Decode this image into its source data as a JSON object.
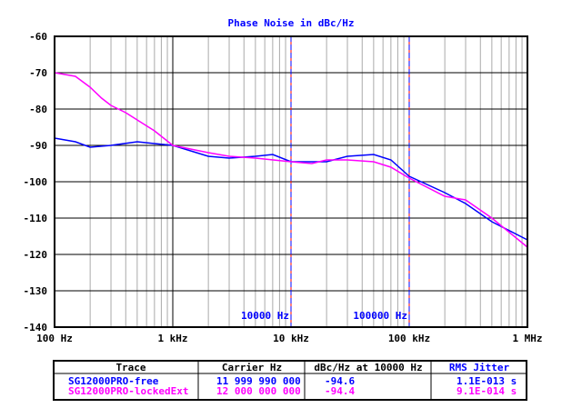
{
  "chart_data": {
    "type": "line",
    "title": "Phase Noise in dBc/Hz",
    "x_scale": "log",
    "xlim": [
      100,
      1000000
    ],
    "ylim": [
      -140,
      -60
    ],
    "grid": true,
    "x_tick_labels": [
      "100 Hz",
      "1 kHz",
      "10 kHz",
      "100 kHz",
      "1 MHz"
    ],
    "y_tick_labels": [
      "-60",
      "-70",
      "-80",
      "-90",
      "-100",
      "-110",
      "-120",
      "-130",
      "-140"
    ],
    "markers": [
      {
        "x": 10000,
        "label": "10000 Hz"
      },
      {
        "x": 100000,
        "label": "100000 Hz"
      }
    ],
    "series": [
      {
        "name": "SG12000PRO-free",
        "color": "#0000ff",
        "x": [
          100,
          150,
          200,
          300,
          500,
          700,
          1000,
          2000,
          3000,
          5000,
          7000,
          10000,
          15000,
          20000,
          30000,
          50000,
          70000,
          100000,
          200000,
          300000,
          500000,
          1000000
        ],
        "y": [
          -88,
          -89,
          -90.5,
          -90,
          -89,
          -89.5,
          -90,
          -93,
          -93.5,
          -93,
          -92.5,
          -94.5,
          -94.5,
          -94.5,
          -93,
          -92.5,
          -94,
          -98.5,
          -103,
          -106,
          -111,
          -116
        ]
      },
      {
        "name": "SG12000PRO-lockedExt",
        "color": "#ff00ff",
        "x": [
          100,
          150,
          200,
          250,
          300,
          400,
          500,
          700,
          1000,
          2000,
          3000,
          5000,
          10000,
          15000,
          20000,
          30000,
          50000,
          70000,
          100000,
          200000,
          300000,
          500000,
          1000000
        ],
        "y": [
          -70,
          -71,
          -74,
          -77,
          -79,
          -81,
          -83,
          -86,
          -90,
          -92,
          -93,
          -93.5,
          -94.5,
          -95,
          -94,
          -94,
          -94.5,
          -96,
          -99,
          -104,
          -105,
          -110,
          -118
        ]
      }
    ]
  },
  "table": {
    "headers": [
      "Trace",
      "Carrier Hz",
      "dBc/Hz at 10000 Hz",
      "RMS Jitter"
    ],
    "rows": [
      {
        "trace": "SG12000PRO-free",
        "carrier": "11 999 990 000",
        "dbc": "-94.6",
        "jitter": "1.1E-013 s",
        "color": "#0000ff"
      },
      {
        "trace": "SG12000PRO-lockedExt",
        "carrier": "12 000 000 000",
        "dbc": "-94.4",
        "jitter": "9.1E-014 s",
        "color": "#ff00ff"
      }
    ]
  }
}
